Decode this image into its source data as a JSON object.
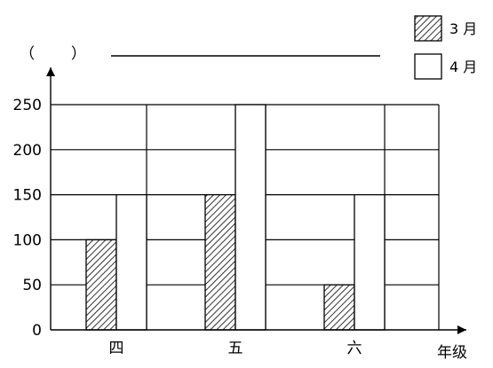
{
  "chart_data": {
    "type": "bar",
    "categories": [
      "四",
      "五",
      "六"
    ],
    "series": [
      {
        "name": "3 月",
        "values": [
          100,
          150,
          50
        ],
        "pattern": "hatched",
        "fill": "#ffffff",
        "stroke": "#000000"
      },
      {
        "name": "4 月",
        "values": [
          150,
          250,
          150
        ],
        "pattern": "none",
        "fill": "#ffffff",
        "stroke": "#000000"
      }
    ],
    "title": "",
    "xlabel": "年级",
    "ylabel_open": "（",
    "ylabel_close": "）",
    "ylim": [
      0,
      250
    ],
    "yticks": [
      0,
      50,
      100,
      150,
      200,
      250
    ],
    "grid": true,
    "legend_position": "top-right"
  }
}
